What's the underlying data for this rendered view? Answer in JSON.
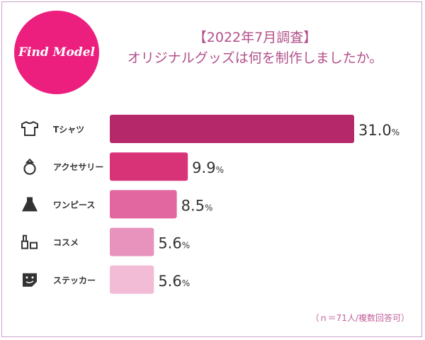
{
  "logo": {
    "text": "Find Model"
  },
  "title": {
    "line1": "【2022年7月調査】",
    "line2": "オリジナルグッズは何を制作しましたか。"
  },
  "note": "（ｎ＝71人/複数回答可）",
  "chart_data": {
    "type": "bar",
    "orientation": "horizontal",
    "unit": "%",
    "categories": [
      "Tシャツ",
      "アクセサリー",
      "ワンピース",
      "コスメ",
      "ステッカー"
    ],
    "icons": [
      "tshirt-icon",
      "ring-icon",
      "dress-icon",
      "cosmetics-icon",
      "sticker-icon"
    ],
    "values": [
      31.0,
      9.9,
      8.5,
      5.6,
      5.6
    ],
    "labels": [
      "31.0",
      "9.9",
      "8.5",
      "5.6",
      "5.6"
    ],
    "colors": [
      "#b5286a",
      "#d93378",
      "#e2669f",
      "#e893be",
      "#f2bcd7"
    ],
    "xlim": [
      0,
      31
    ],
    "grid": false
  }
}
